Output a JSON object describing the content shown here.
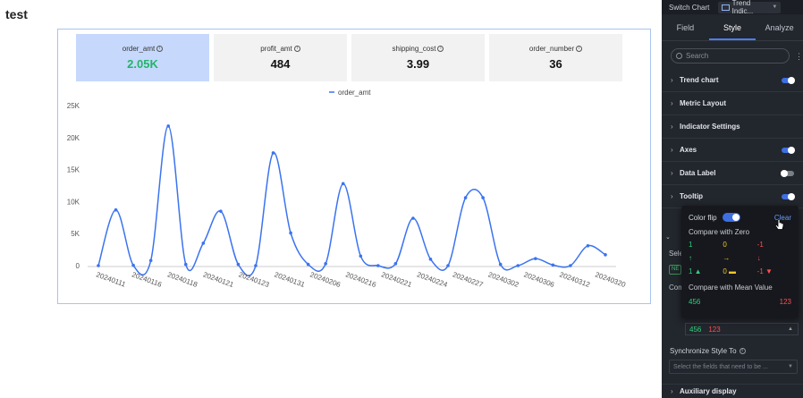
{
  "page": {
    "title": "test"
  },
  "metrics": [
    {
      "name": "order_amt",
      "value": "2.05K",
      "active": true
    },
    {
      "name": "profit_amt",
      "value": "484",
      "active": false
    },
    {
      "name": "shipping_cost",
      "value": "3.99",
      "active": false
    },
    {
      "name": "order_number",
      "value": "36",
      "active": false
    }
  ],
  "chart_data": {
    "type": "line",
    "legend": "order_amt",
    "yticks": [
      "0",
      "5K",
      "10K",
      "15K",
      "20K",
      "25K"
    ],
    "ylim": [
      0,
      25000
    ],
    "x_labels": [
      "20240111",
      "20240116",
      "20240118",
      "20240121",
      "20240123",
      "20240131",
      "20240206",
      "20240216",
      "20240221",
      "20240224",
      "20240227",
      "20240302",
      "20240306",
      "20240312",
      "20240320"
    ],
    "series": [
      {
        "name": "order_amt",
        "values": [
          0,
          8700,
          50,
          800,
          21800,
          200,
          3500,
          8500,
          200,
          0,
          17600,
          5100,
          200,
          300,
          12800,
          1500,
          0,
          300,
          7400,
          1000,
          0,
          10600,
          10600,
          200,
          0,
          1100,
          100,
          0,
          3100,
          1700
        ]
      }
    ],
    "color": "#3b73f0"
  },
  "panel": {
    "switch_chart_label": "Switch Chart",
    "chart_type_value": "Trend Indic...",
    "tabs": [
      "Field",
      "Style",
      "Analyze"
    ],
    "active_tab": "Style",
    "search_placeholder": "Search",
    "sections": [
      {
        "label": "Trend chart",
        "toggle": "on"
      },
      {
        "label": "Metric Layout",
        "toggle": ""
      },
      {
        "label": "Indicator Settings",
        "toggle": ""
      },
      {
        "label": "Axes",
        "toggle": "on"
      },
      {
        "label": "Data Label",
        "toggle": "off"
      },
      {
        "label": "Tooltip",
        "toggle": "on"
      }
    ],
    "partial_labels": {
      "sel": "Sele",
      "tag": "NE",
      "com": "Com"
    },
    "mean_values": {
      "up": "456",
      "down": "123"
    },
    "sync_label": "Synchronize Style To",
    "sync_placeholder": "Select the fields that need to be ...",
    "auxiliary_display": "Auxiliary display"
  },
  "popup": {
    "color_flip_label": "Color flip",
    "clear_label": "Clear",
    "compare_zero_label": "Compare with Zero",
    "compare_zero_grid": [
      [
        "1",
        "0",
        "-1"
      ],
      [
        "↑",
        "→",
        "↓"
      ],
      [
        "1 ▲",
        "0 ▬",
        "-1 ▼"
      ]
    ],
    "compare_mean_label": "Compare with Mean Value",
    "mean_up": "456",
    "mean_down": "123"
  }
}
